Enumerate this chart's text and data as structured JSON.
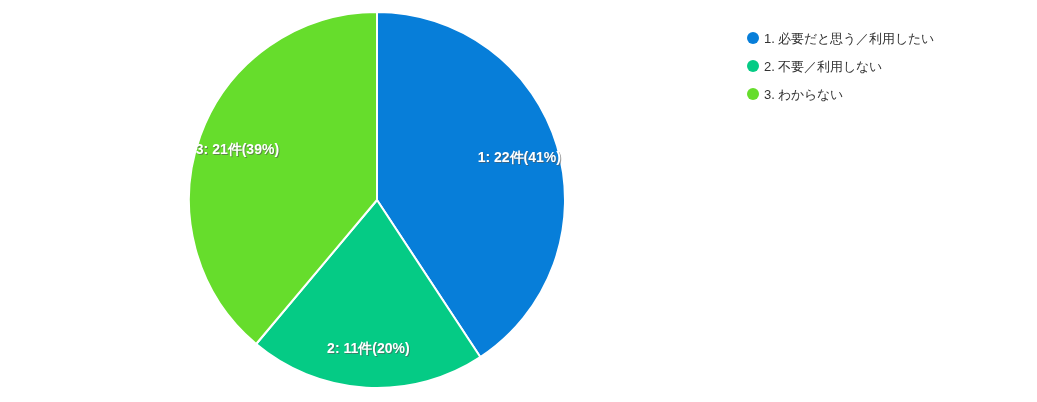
{
  "chart_data": {
    "type": "pie",
    "categories": [
      "1. 必要だと思う／利用したい",
      "2. 不要／利用しない",
      "3. わからない"
    ],
    "values": [
      22,
      11,
      21
    ],
    "colors": [
      "#077ed9",
      "#05cb85",
      "#66dd2c"
    ],
    "value_labels": [
      "1: 22件(41%)",
      "2: 11件(20%)",
      "3: 21件(39%)"
    ],
    "legend": "top right"
  }
}
